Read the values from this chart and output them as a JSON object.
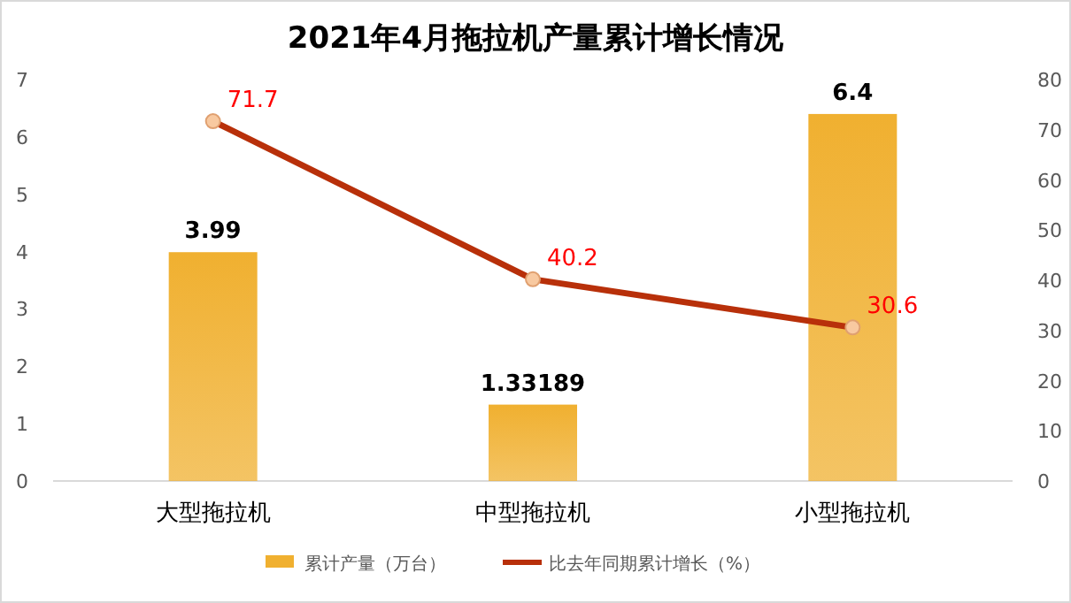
{
  "chart_data": {
    "type": "bar",
    "title": "2021年4月拖拉机产量累计增长情况",
    "categories": [
      "大型拖拉机",
      "中型拖拉机",
      "小型拖拉机"
    ],
    "series": [
      {
        "name": "累计产量（万台）",
        "color": "#f0b030",
        "values": [
          3.99,
          1.33189,
          6.4
        ]
      },
      {
        "name": "比去年同期累计增长（%）",
        "type": "line",
        "axis": "y2",
        "color": "#b8300a",
        "values": [
          71.7,
          40.2,
          30.6
        ]
      }
    ],
    "ylim": [
      0,
      7
    ],
    "yticks": [
      0,
      1,
      2,
      3,
      4,
      5,
      6,
      7
    ],
    "y2lim": [
      0,
      80
    ],
    "y2ticks": [
      0,
      10,
      20,
      30,
      40,
      50,
      60,
      70,
      80
    ],
    "data_labels": true,
    "legend": "bottom",
    "marker": "circle",
    "grid": false
  }
}
